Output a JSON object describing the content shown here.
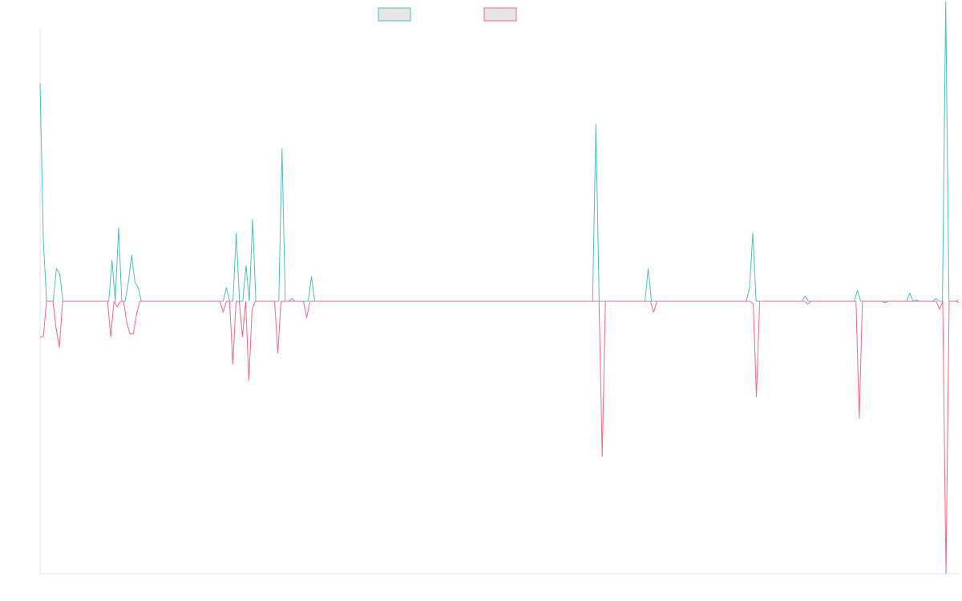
{
  "chart_data": {
    "type": "line",
    "title": "",
    "xlabel": "",
    "ylabel": "",
    "ylim": [
      -100,
      100
    ],
    "grid": false,
    "legend": "top-center",
    "series": [
      {
        "name": "",
        "color": "#4bc0c0",
        "legend_fill": "#e6e6e6",
        "values": [
          80,
          22,
          0,
          0,
          0,
          12,
          10,
          0,
          0,
          0,
          0,
          0,
          0,
          0,
          0,
          0,
          0,
          0,
          0,
          0,
          0,
          0,
          15,
          0,
          27,
          0,
          0,
          7,
          17,
          7,
          5,
          0,
          0,
          0,
          0,
          0,
          0,
          0,
          0,
          0,
          0,
          0,
          0,
          0,
          0,
          0,
          0,
          0,
          0,
          0,
          0,
          0,
          0,
          0,
          0,
          0,
          0,
          5,
          0,
          0,
          25,
          0,
          0,
          13,
          0,
          30,
          0,
          0,
          0,
          0,
          0,
          0,
          0,
          0,
          56,
          0,
          0,
          1,
          0,
          0,
          0,
          0,
          0,
          9,
          0,
          0,
          0,
          0,
          0,
          0,
          0,
          0,
          0,
          0,
          0,
          0,
          0,
          0,
          0,
          0,
          0,
          0,
          0,
          0,
          0,
          0,
          0,
          0,
          0,
          0,
          0,
          0,
          0,
          0,
          0,
          0,
          0,
          0,
          0,
          0,
          0,
          0,
          0,
          0,
          0,
          0,
          0,
          0,
          0,
          0,
          0,
          0,
          0,
          0,
          0,
          0,
          0,
          0,
          0,
          0,
          0,
          0,
          0,
          0,
          0,
          0,
          0,
          0,
          0,
          0,
          0,
          0,
          0,
          0,
          0,
          0,
          0,
          0,
          0,
          0,
          0,
          0,
          0,
          0,
          0,
          0,
          0,
          0,
          0,
          0,
          65,
          0,
          0,
          0,
          0,
          0,
          0,
          0,
          0,
          0,
          0,
          0,
          0,
          0,
          0,
          0,
          12,
          0,
          0,
          0,
          0,
          0,
          0,
          0,
          0,
          0,
          0,
          0,
          0,
          0,
          0,
          0,
          0,
          0,
          0,
          0,
          0,
          0,
          0,
          0,
          0,
          0,
          0,
          0,
          0,
          0,
          0,
          5,
          25,
          0,
          0,
          0,
          0,
          0,
          0,
          0,
          0,
          0,
          0,
          0,
          0,
          0,
          0,
          0,
          2,
          0,
          0,
          0,
          0,
          0,
          0,
          0,
          0,
          0,
          0,
          0,
          0,
          0,
          0,
          0,
          4,
          0,
          0,
          0,
          0,
          0,
          0,
          0,
          0,
          0,
          0,
          0,
          0,
          0,
          0,
          0,
          3,
          0,
          0.5,
          0,
          0,
          0,
          0,
          0,
          1,
          0,
          0,
          110,
          0,
          0,
          0,
          0.5
        ]
      },
      {
        "name": "",
        "color": "#ff6384",
        "legend_fill": "#e6e6e6",
        "values": [
          -13,
          -13,
          0,
          0,
          0,
          -10,
          -17,
          0,
          0,
          0,
          0,
          0,
          0,
          0,
          0,
          0,
          0,
          0,
          0,
          0,
          0,
          0,
          -13,
          0,
          -2,
          0,
          0,
          -8,
          -12,
          -12,
          -5,
          0,
          0,
          0,
          0,
          0,
          0,
          0,
          0,
          0,
          0,
          0,
          0,
          0,
          0,
          0,
          0,
          0,
          0,
          0,
          0,
          0,
          0,
          0,
          0,
          0,
          0,
          -4,
          0,
          0,
          -23,
          0,
          0,
          -13,
          0,
          -29,
          -3,
          0,
          0,
          0,
          0,
          0,
          0,
          0,
          -19,
          0,
          0,
          0,
          0,
          0,
          0,
          0,
          0,
          -6,
          0,
          0,
          0,
          0,
          0,
          0,
          0,
          0,
          0,
          0,
          0,
          0,
          0,
          0,
          0,
          0,
          0,
          0,
          0,
          0,
          0,
          0,
          0,
          0,
          0,
          0,
          0,
          0,
          0,
          0,
          0,
          0,
          0,
          0,
          0,
          0,
          0,
          0,
          0,
          0,
          0,
          0,
          0,
          0,
          0,
          0,
          0,
          0,
          0,
          0,
          0,
          0,
          0,
          0,
          0,
          0,
          0,
          0,
          0,
          0,
          0,
          0,
          0,
          0,
          0,
          0,
          0,
          0,
          0,
          0,
          0,
          0,
          0,
          0,
          0,
          0,
          0,
          0,
          0,
          0,
          0,
          0,
          0,
          0,
          0,
          0,
          0,
          0,
          0,
          0,
          0,
          -57,
          0,
          0,
          0,
          0,
          0,
          0,
          0,
          0,
          0,
          0,
          0,
          0,
          0,
          0,
          0,
          -4,
          0,
          0,
          0,
          0,
          0,
          0,
          0,
          0,
          0,
          0,
          0,
          0,
          0,
          0,
          0,
          0,
          0,
          0,
          0,
          0,
          0,
          0,
          0,
          0,
          0,
          0,
          0,
          0,
          0,
          0,
          -1,
          -35,
          0,
          0,
          0,
          0,
          0,
          0,
          0,
          0,
          0,
          0,
          0,
          0,
          0,
          0,
          0,
          -1,
          0,
          0,
          0,
          0,
          0,
          0,
          0,
          0,
          0,
          0,
          0,
          0,
          0,
          0,
          0,
          -43,
          0,
          0,
          0,
          0,
          0,
          0,
          0,
          -0.5,
          0,
          0,
          0,
          0,
          0,
          0,
          0,
          0,
          0,
          0,
          0,
          0,
          0,
          0,
          0,
          0,
          -3,
          0,
          -100,
          0,
          0,
          0,
          -0.5
        ]
      }
    ]
  }
}
